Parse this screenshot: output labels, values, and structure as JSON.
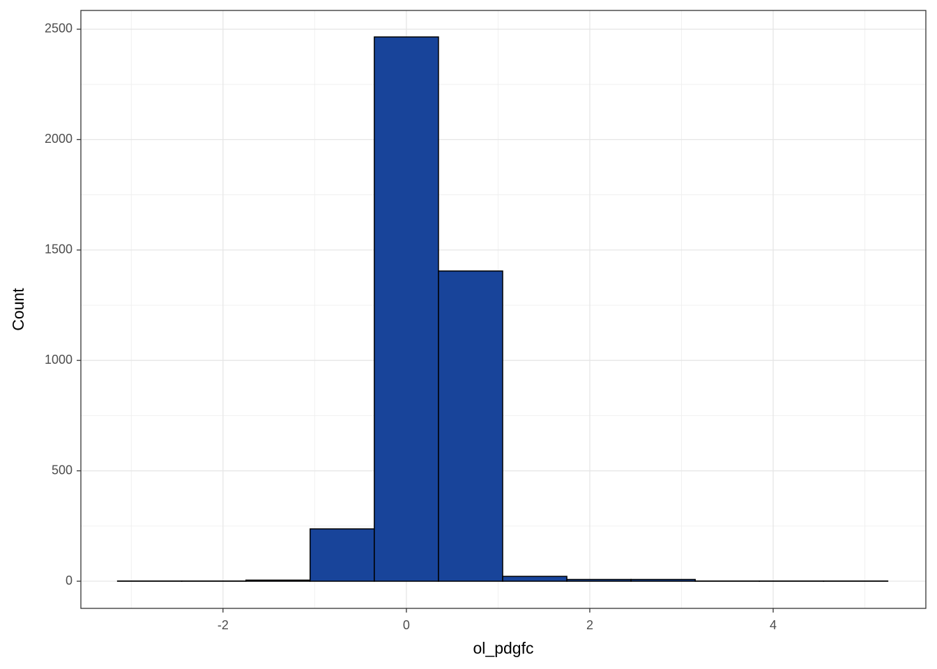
{
  "chart_data": {
    "type": "histogram",
    "x_label": "ol_pdgfc",
    "y_label": "Count",
    "bins": [
      -3.15,
      -2.45,
      -1.75,
      -1.05,
      -0.35,
      0.35,
      1.05,
      1.75,
      2.45,
      3.15,
      3.85,
      4.55,
      5.25
    ],
    "values": [
      1,
      1,
      5,
      237,
      2465,
      1405,
      22,
      8,
      8,
      1,
      1,
      1
    ],
    "color": "#18449a",
    "xlim": [
      -3.55,
      5.665
    ],
    "ylim": [
      -123,
      2585
    ],
    "xticks": [
      -2,
      0,
      2,
      4
    ],
    "yticks": [
      0,
      500,
      1000,
      1500,
      2000,
      2500
    ],
    "grid": true
  }
}
